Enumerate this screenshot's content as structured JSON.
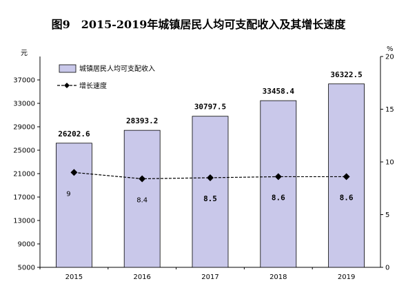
{
  "chart_data": {
    "type": "bar",
    "title": "图9　2015-2019年城镇居民人均可支配收入及其增长速度",
    "categories": [
      "2015",
      "2016",
      "2017",
      "2018",
      "2019"
    ],
    "series": [
      {
        "name": "城镇居民人均可支配收入",
        "type": "bar",
        "axis": "left",
        "values": [
          26202.6,
          28393.2,
          30797.5,
          33458.4,
          36322.5
        ],
        "labels": [
          "26202.6",
          "28393.2",
          "30797.5",
          "33458.4",
          "36322.5"
        ],
        "color": "#c9c8ea"
      },
      {
        "name": "增长速度",
        "type": "line",
        "axis": "right",
        "values": [
          9.0,
          8.4,
          8.5,
          8.6,
          8.6
        ],
        "labels": [
          "9",
          "8.4",
          "8.5",
          "8.6",
          "8.6"
        ],
        "color": "#000000"
      }
    ],
    "y_left": {
      "unit": "元",
      "ylim": [
        5000,
        41000
      ],
      "ticks": [
        "5000",
        "9000",
        "13000",
        "17000",
        "21000",
        "25000",
        "29000",
        "33000",
        "37000"
      ]
    },
    "y_right": {
      "unit": "%",
      "ylim": [
        0,
        20
      ],
      "ticks": [
        "0",
        "5",
        "10",
        "15",
        "20"
      ]
    },
    "grid": false,
    "legend_position": "top-left"
  }
}
